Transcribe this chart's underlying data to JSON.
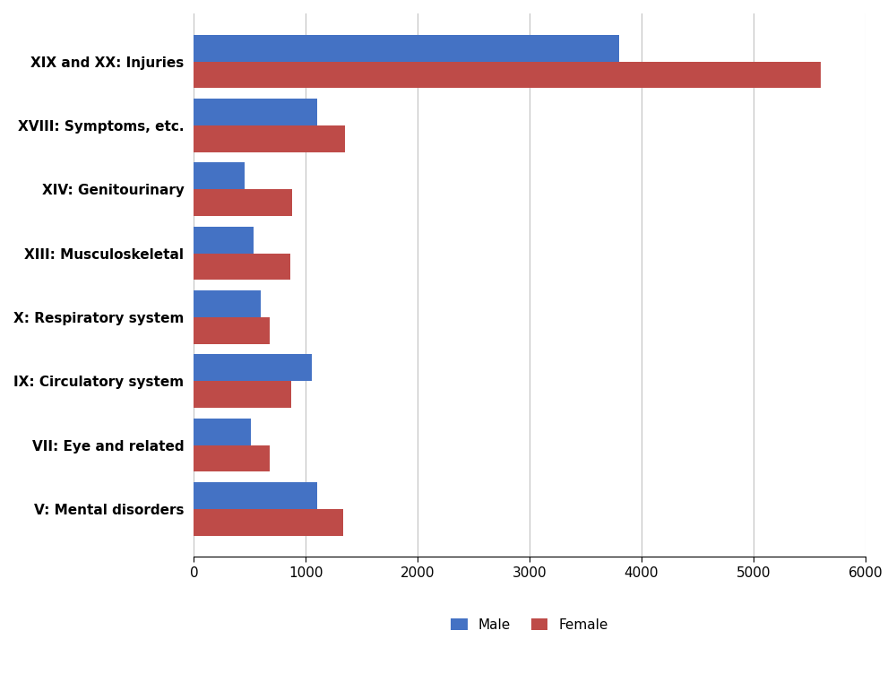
{
  "categories": [
    "V: Mental disorders",
    "VII: Eye and related",
    "IX: Circulatory system",
    "X: Respiratory system",
    "XIII: Musculoskeletal",
    "XIV: Genitourinary",
    "XVIII: Symptoms, etc.",
    "XIX and XX: Injuries"
  ],
  "male_values": [
    1100,
    510,
    1050,
    600,
    530,
    450,
    1100,
    3800
  ],
  "female_values": [
    1330,
    680,
    870,
    680,
    860,
    880,
    1350,
    5600
  ],
  "male_color": "#4472C4",
  "female_color": "#BE4B48",
  "xlim": [
    0,
    6000
  ],
  "xticks": [
    0,
    1000,
    2000,
    3000,
    4000,
    5000,
    6000
  ],
  "legend_labels": [
    "Male",
    "Female"
  ],
  "bar_height": 0.42,
  "grid_color": "#C0C0C0",
  "background_color": "#FFFFFF",
  "tick_fontsize": 11,
  "legend_fontsize": 11,
  "label_fontsize": 11,
  "label_fontweight": "bold"
}
